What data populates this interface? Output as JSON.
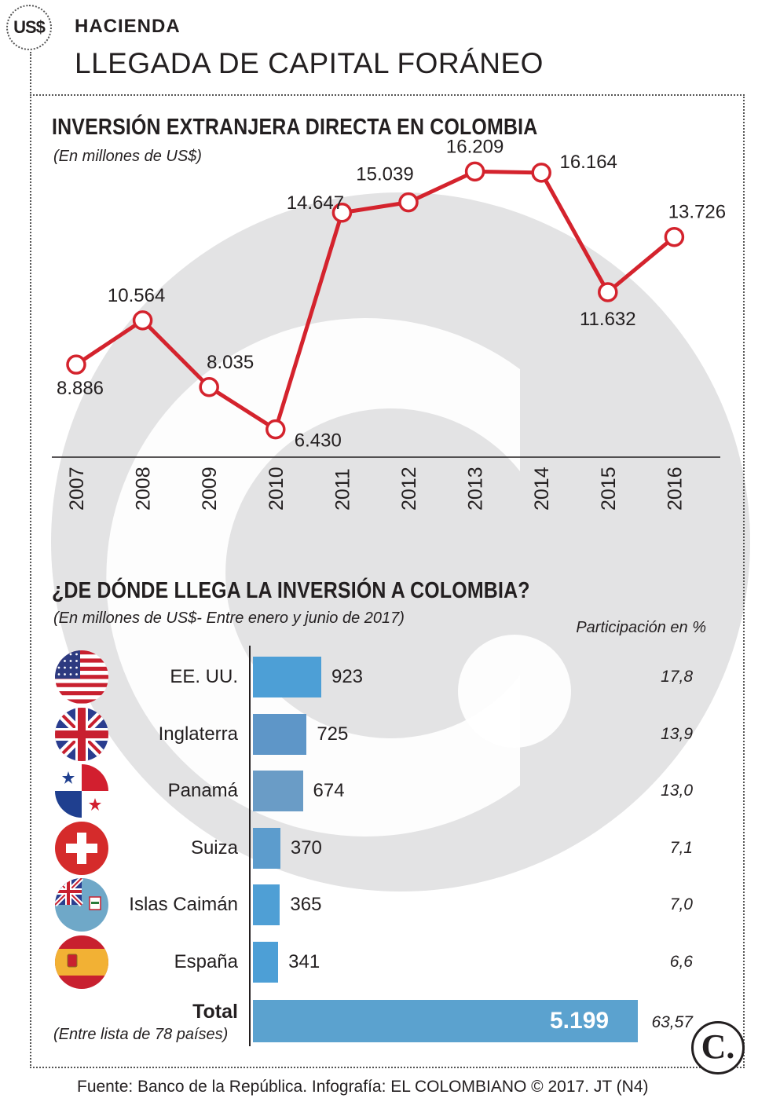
{
  "header": {
    "badge": "US$",
    "section": "HACIENDA",
    "headline": "LLEGADA DE CAPITAL FORÁNEO"
  },
  "chart_data": [
    {
      "type": "line",
      "title": "INVERSIÓN EXTRANJERA DIRECTA EN COLOMBIA",
      "subtitle": "(En millones de US$)",
      "x": [
        "2007",
        "2008",
        "2009",
        "2010",
        "2011",
        "2012",
        "2013",
        "2014",
        "2015",
        "2016"
      ],
      "values": [
        8886,
        10564,
        8035,
        6430,
        14647,
        15039,
        16209,
        16164,
        11632,
        13726
      ],
      "labels": [
        "8.886",
        "10.564",
        "8.035",
        "6.430",
        "14.647",
        "15.039",
        "16.209",
        "16.164",
        "11.632",
        "13.726"
      ],
      "ylim": [
        3500,
        17500
      ],
      "color": "#d4232d"
    },
    {
      "type": "bar",
      "title": "¿DE DÓNDE LLEGA LA INVERSIÓN A COLOMBIA?",
      "subtitle": "(En millones de US$- Entre enero y junio de 2017)",
      "pct_header": "Participación en %",
      "categories": [
        "EE. UU.",
        "Inglaterra",
        "Panamá",
        "Suiza",
        "Islas Caimán",
        "España"
      ],
      "values": [
        923,
        725,
        674,
        370,
        365,
        341
      ],
      "value_labels": [
        "923",
        "725",
        "674",
        "370",
        "365",
        "341"
      ],
      "percent_labels": [
        "17,8",
        "13,9",
        "13,0",
        "7,1",
        "7,0",
        "6,6"
      ],
      "bar_colors": [
        "#4d9fd6",
        "#5e96c8",
        "#6a9cc6",
        "#5c9ccd",
        "#4f9fd5",
        "#4d9fd6"
      ],
      "flags": [
        "usa-flag-icon",
        "uk-flag-icon",
        "panama-flag-icon",
        "switzerland-flag-icon",
        "cayman-islands-flag-icon",
        "spain-flag-icon"
      ],
      "total": {
        "label": "Total",
        "sublabel": "(Entre lista de 78 países)",
        "value": 5199,
        "value_label": "5.199",
        "percent_label": "63,57",
        "color": "#5ba2cf"
      }
    }
  ],
  "logo": "C.",
  "footer": {
    "source": "Fuente: Banco de la República. Infografía: EL COLOMBIANO © 2017. JT (N4)"
  }
}
